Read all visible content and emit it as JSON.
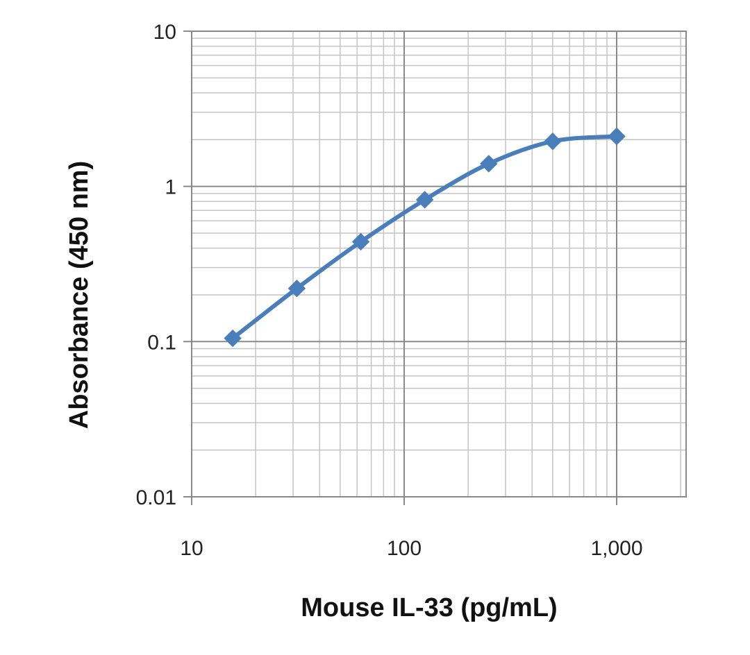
{
  "chart_data": {
    "type": "line",
    "title": "",
    "xlabel": "Mouse IL-33 (pg/mL)",
    "ylabel": "Absorbance (450 nm)",
    "x_scale": "log",
    "y_scale": "log",
    "xlim": [
      10,
      2000
    ],
    "ylim": [
      0.01,
      10
    ],
    "x_ticks": [
      {
        "value": 10,
        "label": "10"
      },
      {
        "value": 100,
        "label": "100"
      },
      {
        "value": 1000,
        "label": "1,000"
      }
    ],
    "y_ticks": [
      {
        "value": 0.01,
        "label": "0.01"
      },
      {
        "value": 0.1,
        "label": "0.1"
      },
      {
        "value": 1,
        "label": "1"
      },
      {
        "value": 10,
        "label": "10"
      }
    ],
    "grid": "major and minor",
    "legend": "none",
    "series": [
      {
        "color": "#4a7ebb",
        "marker": "diamond",
        "x": [
          15.6,
          31.25,
          62.5,
          125,
          250,
          500,
          1000
        ],
        "y": [
          0.105,
          0.22,
          0.44,
          0.82,
          1.4,
          1.95,
          2.1
        ]
      }
    ]
  }
}
